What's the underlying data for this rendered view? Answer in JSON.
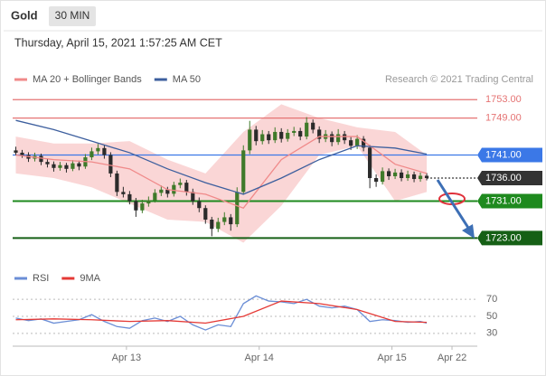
{
  "header": {
    "instrument": "Gold",
    "timeframe": "30 MIN",
    "timestamp": "Thursday, April 15, 2021 1:57:25 AM CET",
    "credit": "Research © 2021 Trading Central"
  },
  "chart_data": [
    {
      "type": "candlestick",
      "xlim": [
        -0.5,
        73
      ],
      "ylim": [
        1717.4,
        1755
      ],
      "up_color": "#3f7a2a",
      "down_color": "#2b2b2b",
      "candles": {
        "open": [
          1742,
          1741.5,
          1741,
          1740.2,
          1740.8,
          1739.5,
          1739,
          1738.2,
          1738.8,
          1738,
          1739.2,
          1738.5,
          1740.5,
          1741.8,
          1742.5,
          1741,
          1737,
          1733,
          1732.5,
          1731,
          1729,
          1730.5,
          1731.2,
          1732.8,
          1733.5,
          1732.6,
          1734.5,
          1735,
          1733,
          1731,
          1729.5,
          1727,
          1725,
          1726.5,
          1727.5,
          1726,
          1733,
          1742,
          1746.5,
          1744,
          1745.5,
          1744.2,
          1746,
          1744.5,
          1745.8,
          1746.2,
          1745,
          1748,
          1746.5,
          1744.5,
          1745.5,
          1743.8,
          1745.5,
          1744.2,
          1743,
          1744.5,
          1742.6,
          1736,
          1735.2,
          1737.5,
          1736.4,
          1737.2,
          1736,
          1736.8,
          1735.8,
          1736.5
        ],
        "high": [
          1742.8,
          1742.1,
          1741.6,
          1741.5,
          1741.3,
          1740.2,
          1739.6,
          1739.5,
          1739.3,
          1739.9,
          1739.8,
          1741.2,
          1742.6,
          1743.4,
          1743.1,
          1741.6,
          1737.6,
          1734.1,
          1733.2,
          1731.7,
          1731.3,
          1732,
          1733.6,
          1734.4,
          1734.1,
          1735.2,
          1735.9,
          1735.6,
          1733.7,
          1731.8,
          1730.1,
          1727.6,
          1727.4,
          1728.6,
          1728.2,
          1734,
          1743.1,
          1748.4,
          1747.3,
          1746.4,
          1746.2,
          1747,
          1746.8,
          1746.6,
          1747.1,
          1746.9,
          1749.2,
          1748.7,
          1747.2,
          1746.4,
          1746.1,
          1746.6,
          1746.2,
          1744.9,
          1745.3,
          1745.1,
          1743.2,
          1736.8,
          1738.3,
          1738.1,
          1738,
          1737.9,
          1737.6,
          1737.4,
          1737.2,
          1737.1
        ],
        "low": [
          1740.9,
          1740.4,
          1739.5,
          1739.6,
          1738.8,
          1738.3,
          1737.4,
          1737.6,
          1737.2,
          1737.5,
          1737.7,
          1738,
          1739.9,
          1741.1,
          1740.2,
          1736.2,
          1732.1,
          1731.8,
          1730.3,
          1727.6,
          1728.4,
          1729.8,
          1730.7,
          1732.1,
          1731.8,
          1732,
          1733.8,
          1732.2,
          1730.2,
          1728.6,
          1726.1,
          1723.4,
          1724.3,
          1725.8,
          1724.6,
          1725.4,
          1732.4,
          1741.2,
          1743.1,
          1743.3,
          1743.4,
          1743.6,
          1743.7,
          1743.9,
          1745.1,
          1744.2,
          1744.4,
          1745.7,
          1743.6,
          1743.8,
          1742.9,
          1743.2,
          1743.4,
          1742.1,
          1742.3,
          1741.8,
          1733.8,
          1734.1,
          1734.6,
          1735.6,
          1735.8,
          1735.3,
          1735.4,
          1735.1,
          1735.2,
          1735.5
        ],
        "close": [
          1741.5,
          1741,
          1740.2,
          1740.8,
          1739.5,
          1739,
          1738.2,
          1738.8,
          1738,
          1739.2,
          1738.5,
          1740.5,
          1741.8,
          1742.5,
          1741,
          1737,
          1733,
          1732.5,
          1731,
          1729,
          1730.5,
          1731.2,
          1732.8,
          1733.5,
          1732.6,
          1734.5,
          1735,
          1733,
          1731,
          1729.5,
          1727,
          1725,
          1726.5,
          1727.5,
          1726,
          1733,
          1742,
          1746.5,
          1744,
          1745.5,
          1744.2,
          1746,
          1744.5,
          1745.8,
          1746.2,
          1745,
          1748,
          1746.5,
          1744.5,
          1745.5,
          1743.8,
          1745.5,
          1744.2,
          1743,
          1744.5,
          1742.6,
          1736,
          1735.2,
          1737.5,
          1736.4,
          1737.2,
          1736,
          1736.8,
          1735.8,
          1736.5,
          1736
        ]
      },
      "series": [
        {
          "name": "MA 20 + Bollinger Bands",
          "color": "#f08a8a",
          "x": [
            0,
            6,
            12,
            18,
            24,
            30,
            36,
            42,
            48,
            54,
            60,
            65
          ],
          "values": [
            1741,
            1740,
            1739.5,
            1738,
            1733.5,
            1732.5,
            1729.5,
            1740,
            1745,
            1745,
            1739,
            1737
          ],
          "upper": [
            1745,
            1743.5,
            1743.5,
            1744,
            1740,
            1737,
            1746,
            1752,
            1749,
            1747,
            1746,
            1741
          ],
          "lower": [
            1737,
            1736,
            1734,
            1730.5,
            1727,
            1726.5,
            1722,
            1730,
            1741,
            1743,
            1731,
            1733
          ]
        },
        {
          "name": "MA 50",
          "color": "#3d5f9e",
          "x": [
            0,
            6,
            12,
            18,
            24,
            30,
            36,
            42,
            48,
            54,
            60,
            65
          ],
          "values": [
            1748.5,
            1746.5,
            1744,
            1741.5,
            1738,
            1735,
            1732.5,
            1736,
            1740,
            1743,
            1742.5,
            1741.2
          ]
        }
      ],
      "levels": [
        {
          "value": 1753,
          "label": "1753.00",
          "color": "#e57373",
          "boxed": false,
          "style": "solid"
        },
        {
          "value": 1749,
          "label": "1749.00",
          "color": "#e57373",
          "boxed": false,
          "style": "solid"
        },
        {
          "value": 1741,
          "label": "1741.00",
          "color": "#3b78e7",
          "boxed": true,
          "style": "solid"
        },
        {
          "value": 1736,
          "label": "1736.00",
          "color": "#333333",
          "boxed": true,
          "style": "dotted"
        },
        {
          "value": 1731,
          "label": "1731.00",
          "color": "#1e8a1e",
          "boxed": true,
          "style": "solid"
        },
        {
          "value": 1723,
          "label": "1723.00",
          "color": "#166016",
          "boxed": true,
          "style": "solid"
        }
      ]
    },
    {
      "type": "line",
      "xlim": [
        -0.5,
        73
      ],
      "ylim": [
        16,
        84
      ],
      "yticks": [
        30,
        50,
        70
      ],
      "xticks": [
        {
          "value": 17.5,
          "label": "Apr 13"
        },
        {
          "value": 38.5,
          "label": "Apr 14"
        },
        {
          "value": 59.5,
          "label": "Apr 15"
        },
        {
          "value": 69,
          "label": "Apr 22"
        }
      ],
      "series": [
        {
          "name": "RSI",
          "color": "#6b8ed6",
          "x": [
            0,
            2,
            4,
            6,
            8,
            10,
            12,
            14,
            16,
            18,
            20,
            22,
            24,
            26,
            28,
            30,
            32,
            34,
            36,
            38,
            40,
            42,
            44,
            46,
            48,
            50,
            52,
            54,
            56,
            58,
            60,
            62,
            64,
            65
          ],
          "values": [
            48,
            45,
            47,
            42,
            44,
            46,
            52,
            44,
            38,
            36,
            45,
            48,
            44,
            50,
            40,
            34,
            40,
            38,
            65,
            74,
            68,
            67,
            65,
            70,
            62,
            60,
            62,
            58,
            44,
            46,
            45,
            43,
            44,
            42
          ]
        },
        {
          "name": "9MA",
          "color": "#e53935",
          "x": [
            0,
            6,
            12,
            18,
            24,
            30,
            36,
            42,
            48,
            54,
            60,
            65
          ],
          "values": [
            46,
            47,
            46,
            44,
            45,
            42,
            50,
            68,
            65,
            58,
            44,
            43
          ]
        }
      ]
    }
  ]
}
